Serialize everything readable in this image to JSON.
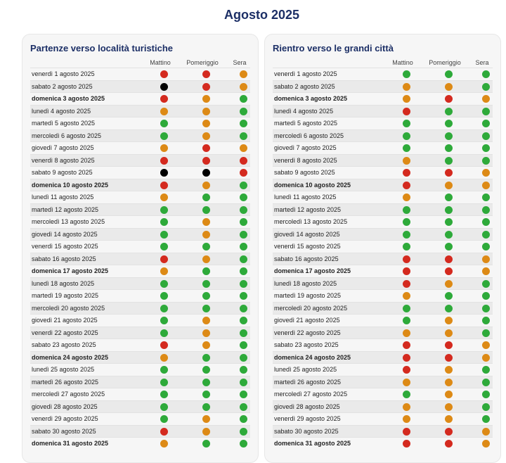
{
  "page": {
    "title": "Agosto 2025"
  },
  "columns": [
    "Mattino",
    "Pomeriggio",
    "Sera"
  ],
  "colors": {
    "green": "#2eaa3a",
    "orange": "#dd8a16",
    "red": "#d42a1f",
    "black": "#000000"
  },
  "panels": [
    {
      "title": "Partenze verso località turistiche",
      "rows": [
        {
          "date": "venerdì 1 agosto 2025",
          "bold": false,
          "m": "red",
          "p": "red",
          "s": "orange"
        },
        {
          "date": "sabato 2 agosto 2025",
          "bold": false,
          "m": "black",
          "p": "red",
          "s": "orange"
        },
        {
          "date": "domenica 3 agosto 2025",
          "bold": true,
          "m": "red",
          "p": "orange",
          "s": "green"
        },
        {
          "date": "lunedì 4 agosto 2025",
          "bold": false,
          "m": "orange",
          "p": "orange",
          "s": "green"
        },
        {
          "date": "martedì 5 agosto 2025",
          "bold": false,
          "m": "green",
          "p": "orange",
          "s": "green"
        },
        {
          "date": "mercoledì 6 agosto 2025",
          "bold": false,
          "m": "green",
          "p": "orange",
          "s": "green"
        },
        {
          "date": "giovedì 7 agosto 2025",
          "bold": false,
          "m": "orange",
          "p": "red",
          "s": "orange"
        },
        {
          "date": "venerdì 8 agosto 2025",
          "bold": false,
          "m": "red",
          "p": "red",
          "s": "red"
        },
        {
          "date": "sabato 9 agosto 2025",
          "bold": false,
          "m": "black",
          "p": "black",
          "s": "red"
        },
        {
          "date": "domenica 10 agosto 2025",
          "bold": true,
          "m": "red",
          "p": "orange",
          "s": "green"
        },
        {
          "date": "lunedì 11 agosto 2025",
          "bold": false,
          "m": "orange",
          "p": "green",
          "s": "green"
        },
        {
          "date": "martedì 12 agosto 2025",
          "bold": false,
          "m": "green",
          "p": "green",
          "s": "green"
        },
        {
          "date": "mercoledì 13 agosto 2025",
          "bold": false,
          "m": "green",
          "p": "orange",
          "s": "green"
        },
        {
          "date": "giovedì 14 agosto 2025",
          "bold": false,
          "m": "green",
          "p": "orange",
          "s": "green"
        },
        {
          "date": "venerdì 15 agosto 2025",
          "bold": false,
          "m": "green",
          "p": "green",
          "s": "green"
        },
        {
          "date": "sabato 16 agosto 2025",
          "bold": false,
          "m": "red",
          "p": "orange",
          "s": "green"
        },
        {
          "date": "domenica 17 agosto 2025",
          "bold": true,
          "m": "orange",
          "p": "green",
          "s": "green"
        },
        {
          "date": "lunedì 18 agosto 2025",
          "bold": false,
          "m": "green",
          "p": "green",
          "s": "green"
        },
        {
          "date": "martedì 19 agosto 2025",
          "bold": false,
          "m": "green",
          "p": "green",
          "s": "green"
        },
        {
          "date": "mercoledì 20 agosto 2025",
          "bold": false,
          "m": "green",
          "p": "green",
          "s": "green"
        },
        {
          "date": "giovedì 21 agosto 2025",
          "bold": false,
          "m": "green",
          "p": "orange",
          "s": "green"
        },
        {
          "date": "venerdì 22 agosto 2025",
          "bold": false,
          "m": "green",
          "p": "orange",
          "s": "green"
        },
        {
          "date": "sabato 23 agosto 2025",
          "bold": false,
          "m": "red",
          "p": "orange",
          "s": "green"
        },
        {
          "date": "domenica 24 agosto 2025",
          "bold": true,
          "m": "orange",
          "p": "green",
          "s": "green"
        },
        {
          "date": "lunedì 25 agosto 2025",
          "bold": false,
          "m": "green",
          "p": "green",
          "s": "green"
        },
        {
          "date": "martedì 26 agosto 2025",
          "bold": false,
          "m": "green",
          "p": "green",
          "s": "green"
        },
        {
          "date": "mercoledì 27 agosto 2025",
          "bold": false,
          "m": "green",
          "p": "green",
          "s": "green"
        },
        {
          "date": "giovedì 28 agosto 2025",
          "bold": false,
          "m": "green",
          "p": "green",
          "s": "green"
        },
        {
          "date": "venerdì 29 agosto 2025",
          "bold": false,
          "m": "green",
          "p": "orange",
          "s": "green"
        },
        {
          "date": "sabato 30 agosto 2025",
          "bold": false,
          "m": "red",
          "p": "orange",
          "s": "green"
        },
        {
          "date": "domenica 31 agosto 2025",
          "bold": true,
          "m": "orange",
          "p": "green",
          "s": "green"
        }
      ]
    },
    {
      "title": "Rientro verso le grandi città",
      "rows": [
        {
          "date": "venerdì 1 agosto 2025",
          "bold": false,
          "m": "green",
          "p": "green",
          "s": "green"
        },
        {
          "date": "sabato 2 agosto 2025",
          "bold": false,
          "m": "orange",
          "p": "orange",
          "s": "green"
        },
        {
          "date": "domenica 3 agosto 2025",
          "bold": true,
          "m": "orange",
          "p": "red",
          "s": "orange"
        },
        {
          "date": "lunedì 4 agosto 2025",
          "bold": false,
          "m": "red",
          "p": "green",
          "s": "green"
        },
        {
          "date": "martedì 5 agosto 2025",
          "bold": false,
          "m": "green",
          "p": "green",
          "s": "green"
        },
        {
          "date": "mercoledì 6 agosto 2025",
          "bold": false,
          "m": "green",
          "p": "green",
          "s": "green"
        },
        {
          "date": "giovedì 7 agosto 2025",
          "bold": false,
          "m": "green",
          "p": "green",
          "s": "green"
        },
        {
          "date": "venerdì 8 agosto 2025",
          "bold": false,
          "m": "orange",
          "p": "green",
          "s": "green"
        },
        {
          "date": "sabato 9 agosto 2025",
          "bold": false,
          "m": "red",
          "p": "red",
          "s": "orange"
        },
        {
          "date": "domenica 10 agosto 2025",
          "bold": true,
          "m": "red",
          "p": "orange",
          "s": "orange"
        },
        {
          "date": "lunedì 11 agosto 2025",
          "bold": false,
          "m": "orange",
          "p": "green",
          "s": "green"
        },
        {
          "date": "martedì 12 agosto 2025",
          "bold": false,
          "m": "green",
          "p": "green",
          "s": "green"
        },
        {
          "date": "mercoledì 13 agosto 2025",
          "bold": false,
          "m": "green",
          "p": "green",
          "s": "green"
        },
        {
          "date": "giovedì 14 agosto 2025",
          "bold": false,
          "m": "green",
          "p": "green",
          "s": "green"
        },
        {
          "date": "venerdì 15 agosto 2025",
          "bold": false,
          "m": "green",
          "p": "green",
          "s": "green"
        },
        {
          "date": "sabato 16 agosto 2025",
          "bold": false,
          "m": "red",
          "p": "red",
          "s": "orange"
        },
        {
          "date": "domenica 17 agosto 2025",
          "bold": true,
          "m": "red",
          "p": "red",
          "s": "orange"
        },
        {
          "date": "lunedì 18 agosto 2025",
          "bold": false,
          "m": "red",
          "p": "orange",
          "s": "green"
        },
        {
          "date": "martedì 19 agosto 2025",
          "bold": false,
          "m": "orange",
          "p": "green",
          "s": "green"
        },
        {
          "date": "mercoledì 20 agosto 2025",
          "bold": false,
          "m": "green",
          "p": "green",
          "s": "green"
        },
        {
          "date": "giovedì 21 agosto 2025",
          "bold": false,
          "m": "green",
          "p": "orange",
          "s": "green"
        },
        {
          "date": "venerdì 22 agosto 2025",
          "bold": false,
          "m": "orange",
          "p": "orange",
          "s": "green"
        },
        {
          "date": "sabato 23 agosto 2025",
          "bold": false,
          "m": "red",
          "p": "red",
          "s": "orange"
        },
        {
          "date": "domenica 24 agosto 2025",
          "bold": true,
          "m": "red",
          "p": "red",
          "s": "orange"
        },
        {
          "date": "lunedì 25 agosto 2025",
          "bold": false,
          "m": "red",
          "p": "orange",
          "s": "green"
        },
        {
          "date": "martedì 26 agosto 2025",
          "bold": false,
          "m": "orange",
          "p": "orange",
          "s": "green"
        },
        {
          "date": "mercoledì 27 agosto 2025",
          "bold": false,
          "m": "green",
          "p": "orange",
          "s": "green"
        },
        {
          "date": "giovedì 28 agosto 2025",
          "bold": false,
          "m": "orange",
          "p": "orange",
          "s": "green"
        },
        {
          "date": "venerdì 29 agosto 2025",
          "bold": false,
          "m": "orange",
          "p": "orange",
          "s": "green"
        },
        {
          "date": "sabato 30 agosto 2025",
          "bold": false,
          "m": "red",
          "p": "red",
          "s": "orange"
        },
        {
          "date": "domenica 31 agosto 2025",
          "bold": true,
          "m": "red",
          "p": "red",
          "s": "orange"
        }
      ]
    }
  ]
}
